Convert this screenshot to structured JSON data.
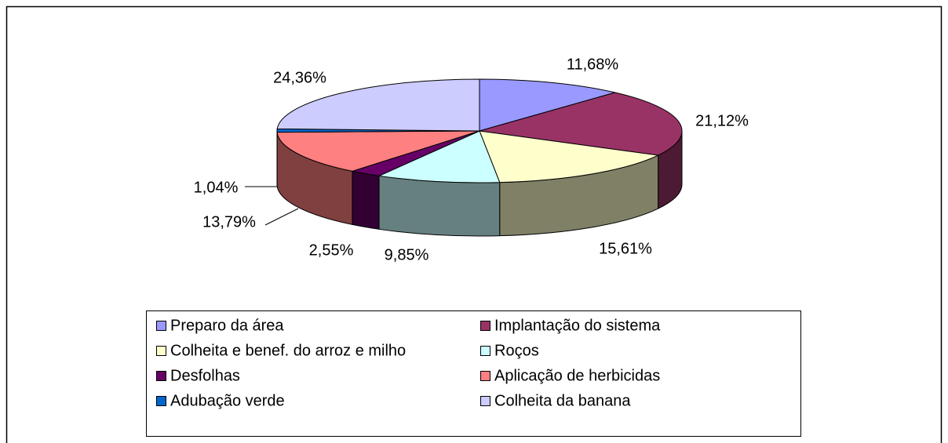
{
  "chart_data": {
    "type": "pie",
    "categories": [
      "Preparo da área",
      "Implantação do sistema",
      "Colheita e benef. do arroz e milho",
      "Roços",
      "Desfolhas",
      "Aplicação de herbicidas",
      "Adubação verde",
      "Colheita da  banana"
    ],
    "values": [
      11.68,
      21.12,
      15.61,
      9.85,
      2.55,
      13.79,
      1.04,
      24.36
    ],
    "value_labels": [
      "11,68%",
      "21,12%",
      "15,61%",
      "9,85%",
      "2,55%",
      "13,79%",
      "1,04%",
      "24,36%"
    ],
    "colors": [
      "#9999ff",
      "#993366",
      "#ffffcc",
      "#ccffff",
      "#660066",
      "#ff8080",
      "#0066cc",
      "#ccccff"
    ]
  }
}
